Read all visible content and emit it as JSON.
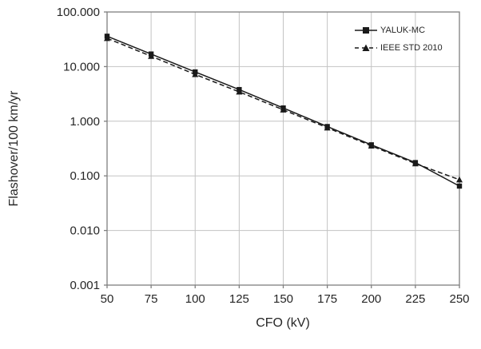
{
  "chart_data": {
    "type": "line",
    "x": [
      50,
      75,
      100,
      125,
      150,
      175,
      200,
      225,
      250
    ],
    "series": [
      {
        "name": "YALUK-MC",
        "line": "solid",
        "marker": "square",
        "values": [
          36,
          17,
          8.0,
          3.8,
          1.75,
          0.8,
          0.37,
          0.175,
          0.065
        ]
      },
      {
        "name": "IEEE STD 2010",
        "line": "dashed",
        "marker": "triangle",
        "values": [
          33,
          15.5,
          7.2,
          3.45,
          1.62,
          0.76,
          0.355,
          0.168,
          0.085
        ]
      }
    ],
    "title": "",
    "xlabel": "CFO (kV)",
    "ylabel": "Flashover/100 km/yr",
    "x_ticks": [
      50,
      75,
      100,
      125,
      150,
      175,
      200,
      225,
      250
    ],
    "xlim": [
      50,
      250
    ],
    "y_scale": "log",
    "ylim": [
      0.001,
      100
    ],
    "y_tick_labels": [
      "100.000",
      "10.000",
      "1.000",
      "0.100",
      "0.010",
      "0.001"
    ],
    "grid": true,
    "legend_position": "top-right",
    "colors": {
      "line": "#1a1a1a",
      "grid": "#c3c3c3",
      "axis": "#7f7f7f",
      "text": "#262626"
    }
  }
}
